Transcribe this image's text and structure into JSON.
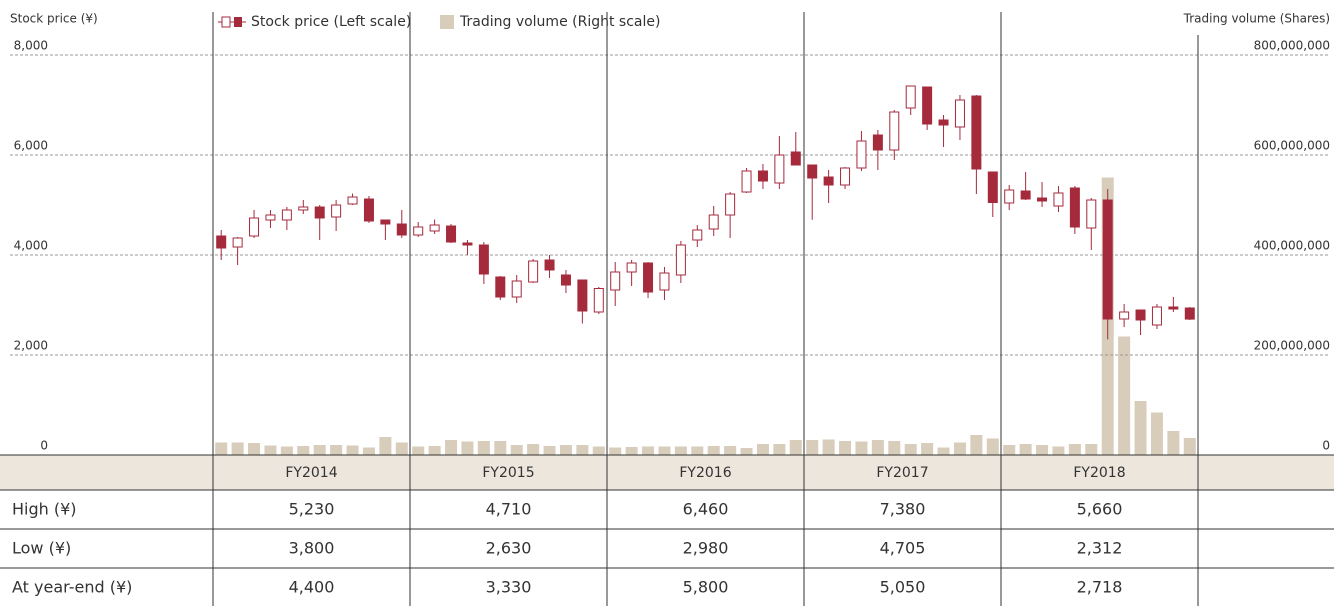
{
  "chart_data": {
    "type": "candlestick",
    "y_label": "Stock price (¥)",
    "y2_label": "Trading volume (Shares)",
    "legend": [
      "Stock price (Left scale)",
      "Trading volume (Right scale)"
    ],
    "up_color": "#ffffff",
    "down_color": "#a52a3c",
    "volume_color": "#d8ccbb",
    "grid": true,
    "categories": [
      null,
      null,
      null,
      null,
      null,
      null,
      null,
      null,
      null,
      null,
      null,
      null,
      null,
      null,
      null,
      null,
      null,
      null,
      null,
      null,
      null,
      null,
      null,
      null,
      null,
      null,
      null,
      null,
      null,
      null,
      null,
      null,
      null,
      null,
      null,
      null,
      null,
      null,
      null,
      null,
      null,
      null,
      null,
      null,
      null,
      null,
      null,
      null,
      null,
      null,
      null,
      null,
      null,
      null,
      null,
      null,
      null,
      null,
      null,
      null
    ],
    "open": [
      4380,
      4160,
      4380,
      4700,
      4700,
      4900,
      4960,
      4760,
      5020,
      5120,
      4700,
      4620,
      4400,
      4480,
      4580,
      4240,
      4200,
      3560,
      3160,
      3460,
      3900,
      3600,
      3500,
      2860,
      3300,
      3660,
      3840,
      3300,
      3600,
      4300,
      4520,
      4800,
      5260,
      5680,
      5440,
      6060,
      5800,
      5560,
      5400,
      5740,
      6400,
      6100,
      6940,
      7360,
      6700,
      6560,
      7180,
      5660,
      5040,
      5280,
      5140,
      4980,
      5340,
      4540,
      5100,
      2720,
      2900,
      2600,
      2960,
      2940
    ],
    "high": [
      4500,
      4360,
      4900,
      4900,
      4960,
      5100,
      5000,
      5100,
      5230,
      5180,
      4700,
      4900,
      4660,
      4710,
      4620,
      4300,
      4260,
      3580,
      3600,
      3920,
      4000,
      3700,
      3500,
      3360,
      3860,
      3900,
      3860,
      3760,
      4280,
      4600,
      4980,
      5260,
      5740,
      5820,
      6380,
      6460,
      5800,
      5700,
      5760,
      6480,
      6500,
      6900,
      7380,
      7360,
      6800,
      7200,
      7200,
      5660,
      5400,
      5660,
      5460,
      5380,
      5380,
      5140,
      5320,
      3020,
      2900,
      3020,
      3160,
      2960
    ],
    "low": [
      3900,
      3800,
      4340,
      4540,
      4500,
      4820,
      4300,
      4480,
      5000,
      4640,
      4300,
      4340,
      4360,
      4420,
      4240,
      4000,
      3420,
      3100,
      3040,
      3440,
      3540,
      3240,
      2630,
      2820,
      2980,
      3380,
      3140,
      3100,
      3440,
      4160,
      4380,
      4340,
      5240,
      5320,
      5320,
      5800,
      4705,
      5040,
      5320,
      5680,
      5700,
      5900,
      6800,
      6500,
      6160,
      6300,
      5220,
      4760,
      4900,
      5100,
      4960,
      4860,
      4420,
      4100,
      2312,
      2560,
      2400,
      2520,
      2860,
      2700
    ],
    "close": [
      4140,
      4340,
      4740,
      4800,
      4900,
      4960,
      4740,
      5000,
      5160,
      4680,
      4620,
      4400,
      4560,
      4600,
      4260,
      4200,
      3620,
      3160,
      3480,
      3880,
      3700,
      3400,
      2880,
      3330,
      3660,
      3840,
      3260,
      3640,
      4200,
      4500,
      4800,
      5220,
      5680,
      5480,
      6000,
      5800,
      5540,
      5400,
      5740,
      6280,
      6100,
      6860,
      7380,
      6620,
      6600,
      7100,
      5720,
      5050,
      5300,
      5120,
      5080,
      5240,
      4560,
      5100,
      2720,
      2860,
      2700,
      2960,
      2920,
      2718
    ],
    "volume": [
      25000000,
      25000000,
      24000000,
      19000000,
      17000000,
      18000000,
      20000000,
      20000000,
      19000000,
      15000000,
      36000000,
      25000000,
      17000000,
      18000000,
      30000000,
      27000000,
      28000000,
      28000000,
      20000000,
      22000000,
      18000000,
      20000000,
      20000000,
      17000000,
      15000000,
      16000000,
      17000000,
      17000000,
      17000000,
      17000000,
      18000000,
      18000000,
      14000000,
      22000000,
      22000000,
      30000000,
      30000000,
      31000000,
      28000000,
      27000000,
      30000000,
      28000000,
      22000000,
      24000000,
      15000000,
      25000000,
      40000000,
      33000000,
      20000000,
      22000000,
      20000000,
      17000000,
      22000000,
      22000000,
      555000000,
      237000000,
      108000000,
      85000000,
      48000000,
      34000000
    ],
    "ylim": [
      0,
      8000
    ],
    "yticks": [
      0,
      {
        "value": 2000,
        "label": "2,000"
      },
      {
        "value": 4000,
        "label": "4,000"
      },
      {
        "value": 6000,
        "label": "6,000"
      },
      {
        "value": 8000,
        "label": "8,000"
      }
    ],
    "y2lim": [
      0,
      800000000
    ],
    "y2ticks": [
      0,
      {
        "value": 200000000,
        "label": "200,000,000"
      },
      {
        "value": 400000000,
        "label": "400,000,000"
      },
      {
        "value": 600000000,
        "label": "600,000,000"
      },
      {
        "value": 800000000,
        "label": "800,000,000"
      }
    ]
  },
  "table": {
    "header": [
      "FY2014",
      "FY2015",
      "FY2016",
      "FY2017",
      "FY2018"
    ],
    "rows": [
      {
        "label": "High (¥)",
        "values": [
          "5,230",
          "4,710",
          "6,460",
          "7,380",
          "5,660"
        ]
      },
      {
        "label": "Low (¥)",
        "values": [
          "3,800",
          "2,630",
          "2,980",
          "4,705",
          "2,312"
        ]
      },
      {
        "label": "At year-end (¥)",
        "values": [
          "4,400",
          "3,330",
          "5,800",
          "5,050",
          "2,718"
        ]
      }
    ]
  }
}
